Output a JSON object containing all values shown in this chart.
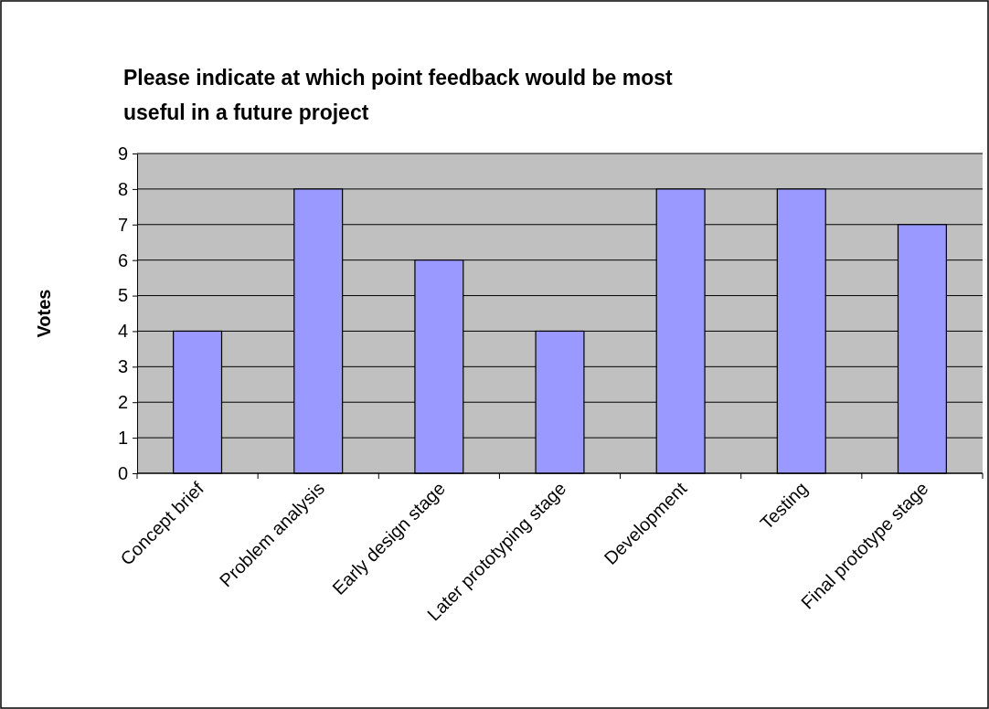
{
  "chart_data": {
    "type": "bar",
    "title": "Please indicate at which point feedback would be most useful in a future project",
    "ylabel": "Votes",
    "categories": [
      "Concept brief",
      "Problem analysis",
      "Early design stage",
      "Later prototyping stage",
      "Development",
      "Testing",
      "Final prototype stage"
    ],
    "values": [
      4,
      8,
      6,
      4,
      8,
      8,
      7
    ],
    "color": "#9999ff",
    "ylim": [
      0,
      9
    ],
    "yticks": [
      0,
      1,
      2,
      3,
      4,
      5,
      6,
      7,
      8,
      9
    ],
    "grid": "y"
  }
}
